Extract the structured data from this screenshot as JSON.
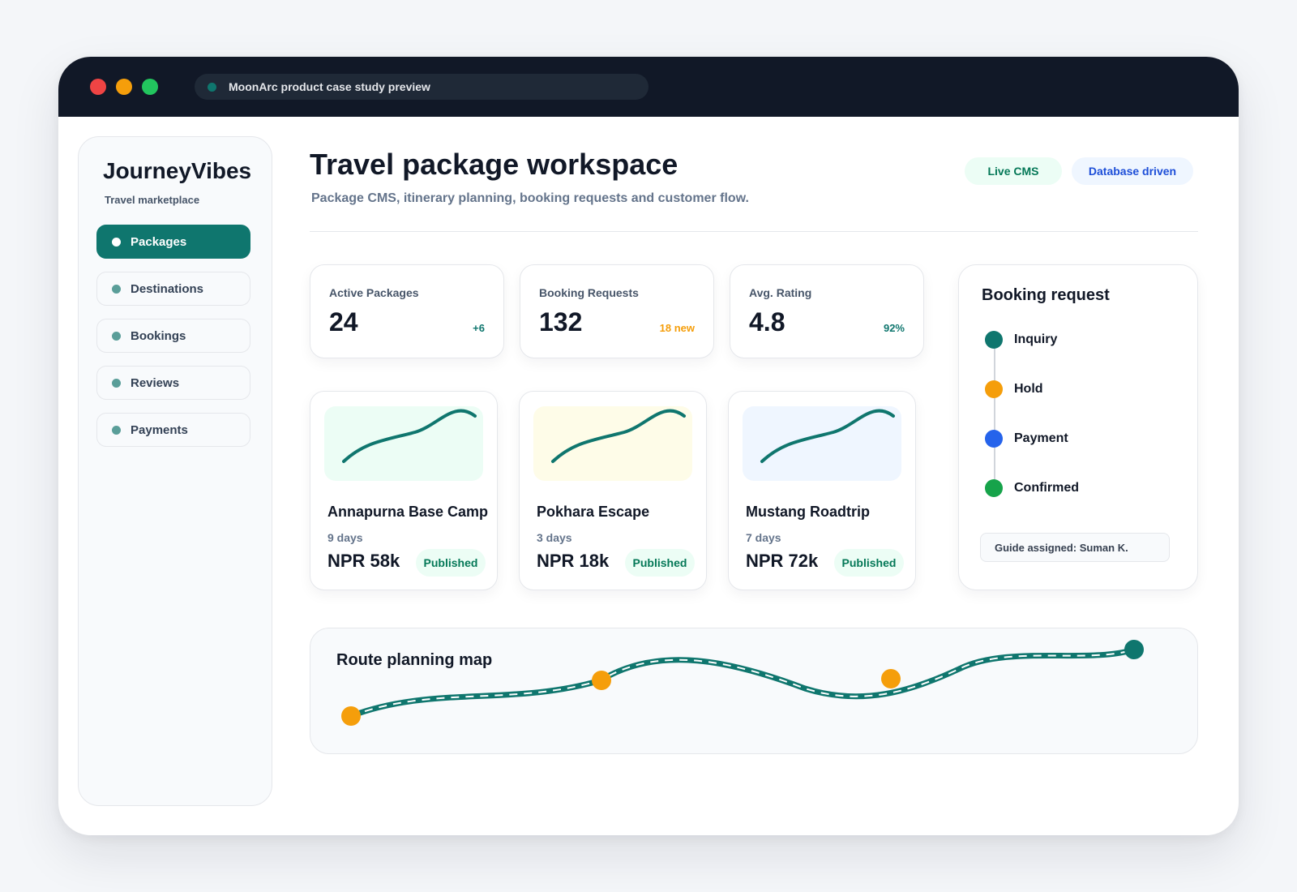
{
  "browser": {
    "url_label": "MoonArc product case study preview"
  },
  "sidebar": {
    "brand": "JourneyVibes",
    "brand_sub": "Travel marketplace",
    "items": [
      {
        "label": "Packages",
        "active": true
      },
      {
        "label": "Destinations",
        "active": false
      },
      {
        "label": "Bookings",
        "active": false
      },
      {
        "label": "Reviews",
        "active": false
      },
      {
        "label": "Payments",
        "active": false
      }
    ]
  },
  "header": {
    "title": "Travel package workspace",
    "subtitle": "Package CMS, itinerary planning, booking requests and customer flow.",
    "tags": [
      "Live CMS",
      "Database driven"
    ]
  },
  "stats": [
    {
      "label": "Active Packages",
      "value": "24",
      "delta": "+6",
      "delta_color": "#0f766e"
    },
    {
      "label": "Booking Requests",
      "value": "132",
      "delta": "18 new",
      "delta_color": "#f59e0b"
    },
    {
      "label": "Avg. Rating",
      "value": "4.8",
      "delta": "92%",
      "delta_color": "#0f766e"
    }
  ],
  "packages": [
    {
      "name": "Annapurna Base Camp",
      "days": "9 days",
      "price": "NPR 58k",
      "status": "Published",
      "thumb_color": "#ecfdf5"
    },
    {
      "name": "Pokhara Escape",
      "days": "3 days",
      "price": "NPR 18k",
      "status": "Published",
      "thumb_color": "#fefce8"
    },
    {
      "name": "Mustang Roadtrip",
      "days": "7 days",
      "price": "NPR 72k",
      "status": "Published",
      "thumb_color": "#eff6ff"
    }
  ],
  "booking_request": {
    "title": "Booking request",
    "steps": [
      {
        "label": "Inquiry",
        "color": "#0f766e"
      },
      {
        "label": "Hold",
        "color": "#f59e0b"
      },
      {
        "label": "Payment",
        "color": "#2563eb"
      },
      {
        "label": "Confirmed",
        "color": "#16a34a"
      }
    ],
    "guide": "Guide assigned: Suman K."
  },
  "route_map": {
    "title": "Route planning map",
    "route_color": "#0f766e",
    "stop_color": "#f59e0b"
  }
}
